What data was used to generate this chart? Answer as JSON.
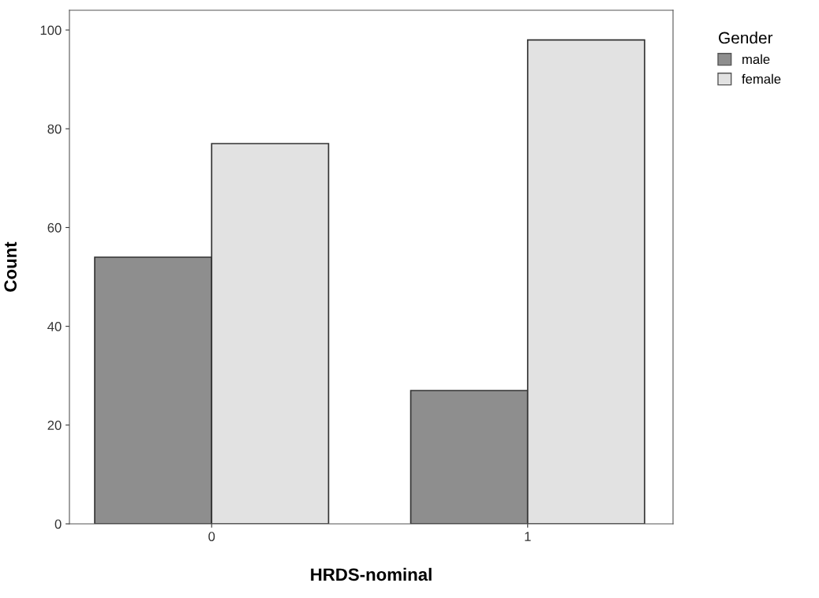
{
  "chart_data": {
    "type": "bar",
    "xlabel": "HRDS-nominal",
    "ylabel": "Count",
    "legend_title": "Gender",
    "categories": [
      "0",
      "1"
    ],
    "series": [
      {
        "name": "male",
        "color": "#8e8e8e",
        "values": [
          54,
          27
        ]
      },
      {
        "name": "female",
        "color": "#e2e2e2",
        "values": [
          77,
          98
        ]
      }
    ],
    "ylim": [
      0,
      104
    ],
    "yticks": [
      0,
      20,
      40,
      60,
      80,
      100
    ],
    "grid": false,
    "legend": "top right"
  }
}
